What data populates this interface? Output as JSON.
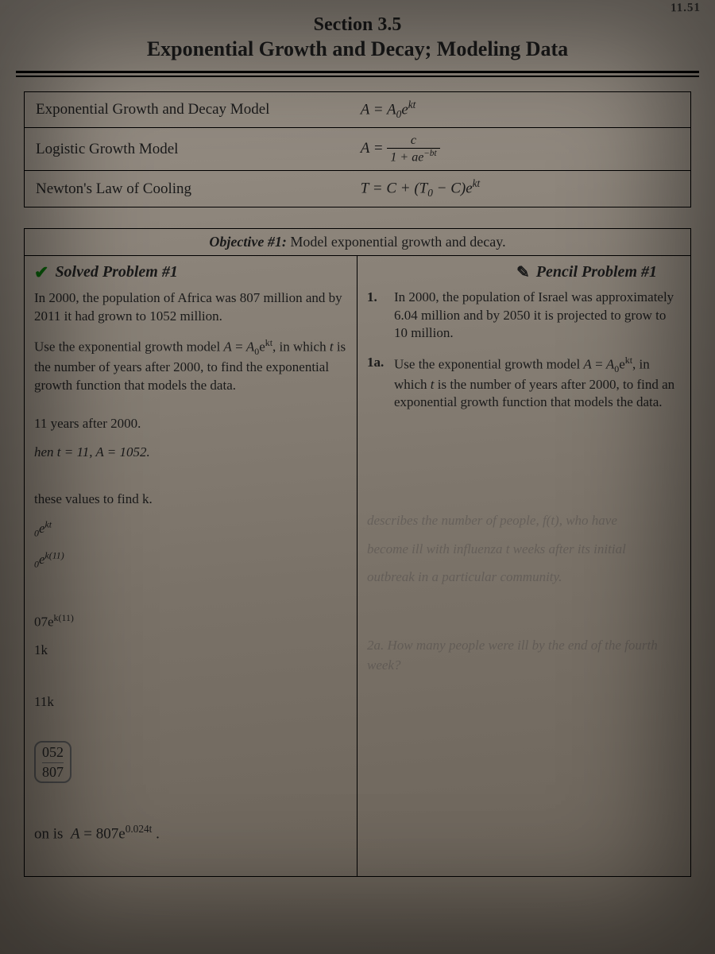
{
  "corner_tag": "11.51",
  "header": {
    "section_number": "Section 3.5",
    "section_title": "Exponential Growth and Decay; Modeling Data"
  },
  "models": [
    {
      "name": "Exponential Growth and Decay Model",
      "formula_html": "A = A<sub>0</sub>e<sup>kt</sup>"
    },
    {
      "name": "Logistic Growth Model",
      "formula_html": "A = <span class='frac'><span class='num'>c</span><span class='den'>1 + ae<sup>−bt</sup></span></span>"
    },
    {
      "name": "Newton's Law of Cooling",
      "formula_html": "T = C + (T<sub>0</sub> − C)e<sup>kt</sup>"
    }
  ],
  "objective": {
    "lead": "Objective #1:",
    "text": "Model exponential growth and decay."
  },
  "solved": {
    "title": "Solved Problem #1",
    "intro": "In 2000, the population of Africa was 807 million and by 2011 it had grown to 1052 million.",
    "instr_html": "Use the exponential growth model <i>A</i> = <i>A</i><sub>0</sub>e<sup>kt</sup>, in which <i>t</i> is the number of years after 2000, to find the exponential growth function that models the data.",
    "work": [
      "11 years after 2000.",
      "hen t = 11,  A = 1052.",
      "",
      "these values to find k.",
      "<i><sub>0</sub>e<sup>kt</sup></i>",
      "<i><sub>0</sub>e<sup>k(11)</sup></i>",
      "",
      "07e<sup>k(11)</sup>",
      "1k",
      "",
      "11k"
    ],
    "stack_top": "052",
    "stack_bot": "807",
    "answer_html": "on is &nbsp;<i>A</i> = 807e<sup>0.024t</sup> ."
  },
  "pencil": {
    "title": "Pencil Problem #1",
    "q1_num": "1.",
    "q1_text": "In 2000, the population of Israel was approximately 6.04 million and by 2050 it is projected to grow to 10 million.",
    "q1a_num": "1a.",
    "q1a_html": "Use the exponential growth model <i>A</i> = <i>A</i><sub>0</sub>e<sup>kt</sup>, in which <i>t</i> is the number of years after 2000, to find an exponential growth function that models the data."
  },
  "ghost_lines": [
    "describes the number of people, f(t), who have",
    "become ill with influenza t weeks after its initial",
    "outbreak in a particular community.",
    "2a. How many people were ill by the end of the fourth week?"
  ]
}
